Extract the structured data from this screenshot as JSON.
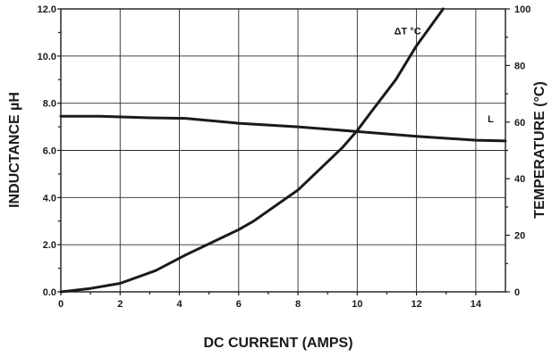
{
  "chart_data": {
    "type": "line",
    "xlabel": "DC CURRENT (AMPS)",
    "ylabel": "INDUCTANCE µH",
    "y2label": "TEMPERATURE (°C)",
    "xlim": [
      0,
      15
    ],
    "ylim": [
      0,
      12
    ],
    "y2lim": [
      0,
      100
    ],
    "x_ticks": [
      "0",
      "2",
      "4",
      "6",
      "8",
      "10",
      "12",
      "14"
    ],
    "y_ticks": [
      "0.0",
      "2.0",
      "4.0",
      "6.0",
      "8.0",
      "10.0",
      "12.0"
    ],
    "y2_ticks": [
      "0",
      "20",
      "40",
      "60",
      "80",
      "100"
    ],
    "grid": true,
    "series": [
      {
        "name": "L",
        "axis": "left",
        "label_at": [
          14.5,
          7.2
        ],
        "points": [
          [
            0,
            7.45
          ],
          [
            1.3,
            7.45
          ],
          [
            3.0,
            7.38
          ],
          [
            4.2,
            7.36
          ],
          [
            6.0,
            7.15
          ],
          [
            8.0,
            7.0
          ],
          [
            10.0,
            6.8
          ],
          [
            12.0,
            6.6
          ],
          [
            14.0,
            6.43
          ],
          [
            15.0,
            6.4
          ]
        ]
      },
      {
        "name": "ΔT °C",
        "axis": "right",
        "label_at": [
          11.7,
          91
        ],
        "points": [
          [
            0,
            0
          ],
          [
            1.0,
            1.2
          ],
          [
            2.0,
            3
          ],
          [
            3.2,
            7.5
          ],
          [
            4.2,
            13
          ],
          [
            6.0,
            22
          ],
          [
            6.5,
            25
          ],
          [
            8.0,
            36
          ],
          [
            9.5,
            51
          ],
          [
            10.0,
            57
          ],
          [
            10.5,
            64
          ],
          [
            11.3,
            75
          ],
          [
            12.0,
            87
          ],
          [
            12.9,
            100
          ]
        ]
      }
    ]
  }
}
